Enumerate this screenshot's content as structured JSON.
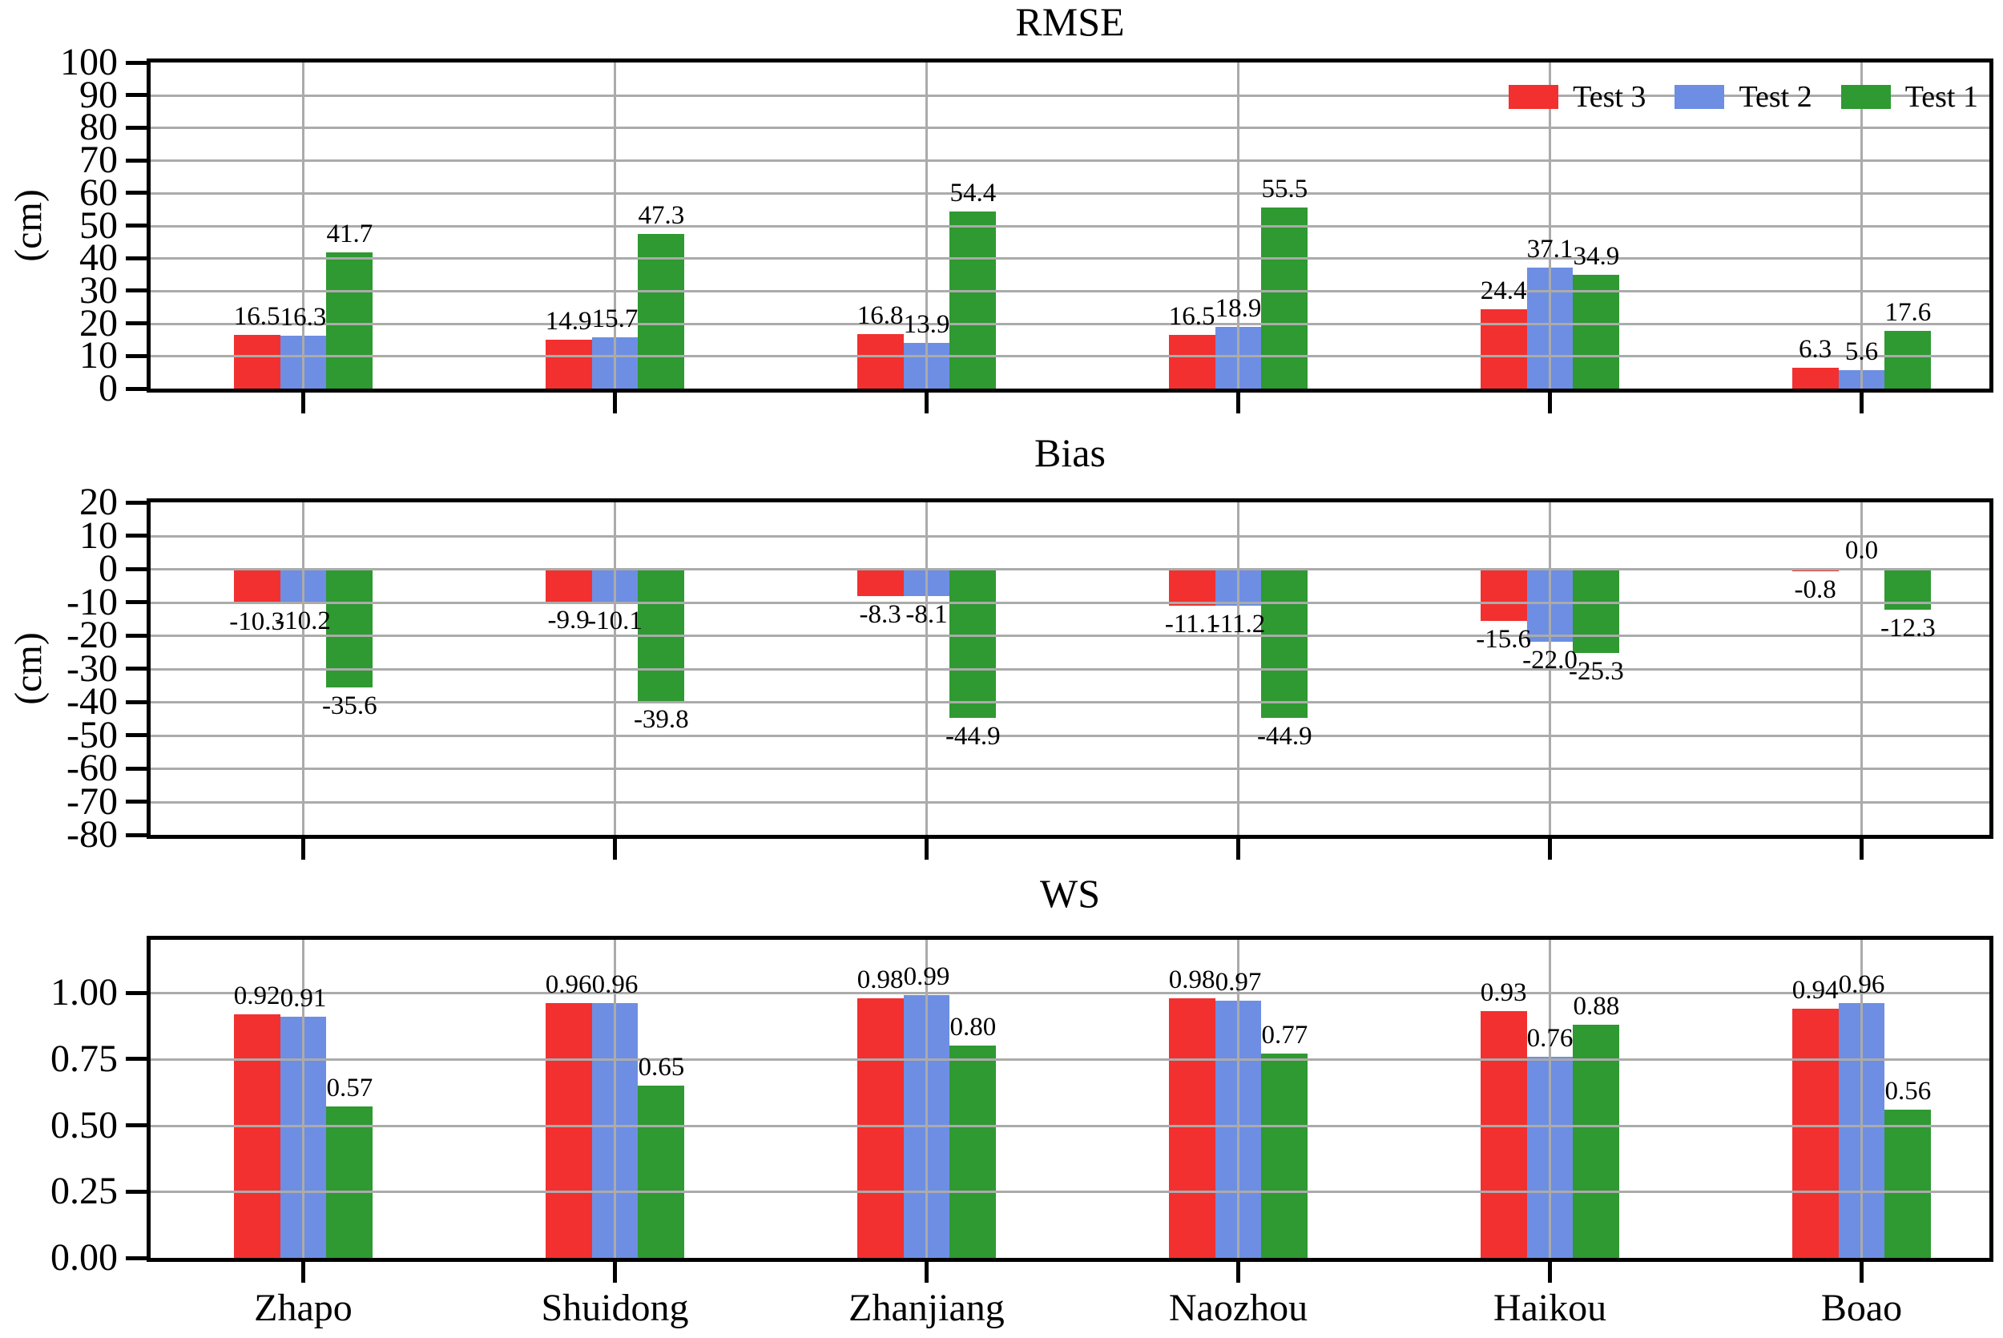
{
  "figure": {
    "background": "#ffffff",
    "grid_color": "#ababab",
    "axis_color": "#000000"
  },
  "stations": [
    "Zhapo",
    "Shuidong",
    "Zhanjiang",
    "Naozhou",
    "Haikou",
    "Boao"
  ],
  "legend": {
    "items": [
      {
        "label": "Test 3",
        "color": "#f2302f"
      },
      {
        "label": "Test 2",
        "color": "#6d8ee3"
      },
      {
        "label": "Test 1",
        "color": "#2f9932"
      }
    ]
  },
  "chart_data": [
    {
      "type": "bar",
      "title": "RMSE",
      "ylabel": "(cm)",
      "ylim": [
        0,
        100
      ],
      "yticks": [
        0,
        10,
        20,
        30,
        40,
        50,
        60,
        70,
        80,
        90,
        100
      ],
      "ytick_labels": [
        "0",
        "10",
        "20",
        "30",
        "40",
        "50",
        "60",
        "70",
        "80",
        "90",
        "100"
      ],
      "grid": true,
      "legend_position": "upper right",
      "categories": [
        "Zhapo",
        "Shuidong",
        "Zhanjiang",
        "Naozhou",
        "Haikou",
        "Boao"
      ],
      "series": [
        {
          "name": "Test 3",
          "color": "#f2302f",
          "values": [
            16.5,
            14.9,
            16.8,
            16.5,
            24.4,
            6.3
          ],
          "labels": [
            "16.5",
            "14.9",
            "16.8",
            "16.5",
            "24.4",
            "6.3"
          ]
        },
        {
          "name": "Test 2",
          "color": "#6d8ee3",
          "values": [
            16.3,
            15.7,
            13.9,
            18.9,
            37.1,
            5.6
          ],
          "labels": [
            "16.3",
            "15.7",
            "13.9",
            "18.9",
            "37.1",
            "5.6"
          ]
        },
        {
          "name": "Test 1",
          "color": "#2f9932",
          "values": [
            41.7,
            47.3,
            54.4,
            55.5,
            34.9,
            17.6
          ],
          "labels": [
            "41.7",
            "47.3",
            "54.4",
            "55.5",
            "34.9",
            "17.6"
          ]
        }
      ]
    },
    {
      "type": "bar",
      "title": "Bias",
      "ylabel": "(cm)",
      "ylim": [
        -80,
        20
      ],
      "yticks": [
        -80,
        -70,
        -60,
        -50,
        -40,
        -30,
        -20,
        -10,
        0,
        10,
        20
      ],
      "ytick_labels": [
        "-80",
        "-70",
        "-60",
        "-50",
        "-40",
        "-30",
        "-20",
        "-10",
        "0",
        "10",
        "20"
      ],
      "grid": true,
      "categories": [
        "Zhapo",
        "Shuidong",
        "Zhanjiang",
        "Naozhou",
        "Haikou",
        "Boao"
      ],
      "series": [
        {
          "name": "Test 3",
          "color": "#f2302f",
          "values": [
            -10.3,
            -9.9,
            -8.3,
            -11.1,
            -15.6,
            -0.8
          ],
          "labels": [
            "-10.3",
            "-9.9",
            "-8.3",
            "-11.1",
            "-15.6",
            "-0.8"
          ]
        },
        {
          "name": "Test 2",
          "color": "#6d8ee3",
          "values": [
            -10.2,
            -10.1,
            -8.1,
            -11.2,
            -22.0,
            0.0
          ],
          "labels": [
            "-10.2",
            "-10.1",
            "-8.1",
            "-11.2",
            "-22.0",
            "0.0"
          ]
        },
        {
          "name": "Test 1",
          "color": "#2f9932",
          "values": [
            -35.6,
            -39.8,
            -44.9,
            -44.9,
            -25.3,
            -12.3
          ],
          "labels": [
            "-35.6",
            "-39.8",
            "-44.9",
            "-44.9",
            "-25.3",
            "-12.3"
          ]
        }
      ]
    },
    {
      "type": "bar",
      "title": "WS",
      "ylabel": "",
      "ylim": [
        0,
        1.2
      ],
      "yticks": [
        0,
        0.25,
        0.5,
        0.75,
        1.0
      ],
      "ytick_labels": [
        "0.00",
        "0.25",
        "0.50",
        "0.75",
        "1.00"
      ],
      "grid": true,
      "categories": [
        "Zhapo",
        "Shuidong",
        "Zhanjiang",
        "Naozhou",
        "Haikou",
        "Boao"
      ],
      "series": [
        {
          "name": "Test 3",
          "color": "#f2302f",
          "values": [
            0.92,
            0.96,
            0.98,
            0.98,
            0.93,
            0.94
          ],
          "labels": [
            "0.92",
            "0.96",
            "0.98",
            "0.98",
            "0.93",
            "0.94"
          ]
        },
        {
          "name": "Test 2",
          "color": "#6d8ee3",
          "values": [
            0.91,
            0.96,
            0.99,
            0.97,
            0.76,
            0.96
          ],
          "labels": [
            "0.91",
            "0.96",
            "0.99",
            "0.97",
            "0.76",
            "0.96"
          ]
        },
        {
          "name": "Test 1",
          "color": "#2f9932",
          "values": [
            0.57,
            0.65,
            0.8,
            0.77,
            0.88,
            0.56
          ],
          "labels": [
            "0.57",
            "0.65",
            "0.80",
            "0.77",
            "0.88",
            "0.56"
          ]
        }
      ]
    }
  ]
}
